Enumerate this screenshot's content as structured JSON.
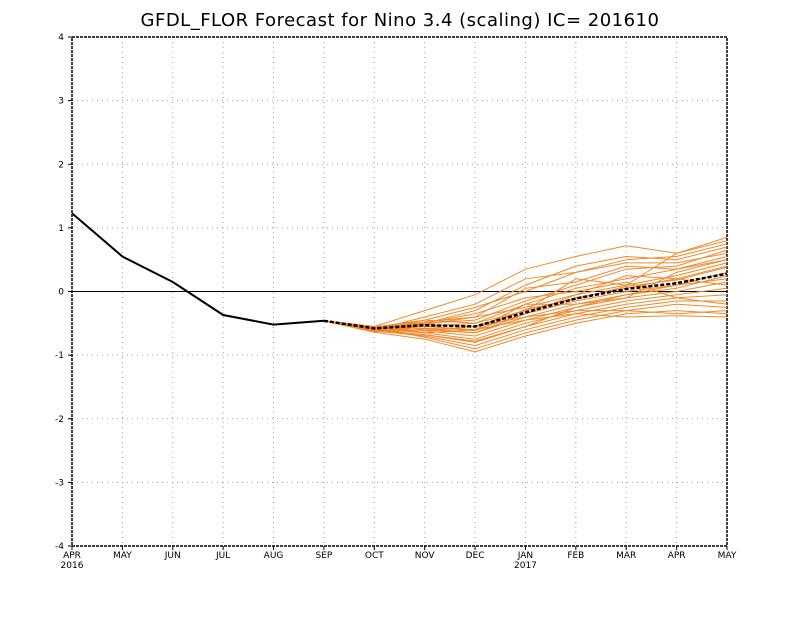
{
  "chart_data": {
    "type": "line",
    "title": "GFDL_FLOR Forecast for Nino 3.4 (scaling) IC= 201610",
    "xlabel": "",
    "ylabel": "",
    "x_ticks": [
      "APR",
      "MAY",
      "JUN",
      "JUL",
      "AUG",
      "SEP",
      "OCT",
      "NOV",
      "DEC",
      "JAN",
      "FEB",
      "MAR",
      "APR",
      "MAY"
    ],
    "x_year_labels": [
      {
        "index": 0,
        "label": "2016"
      },
      {
        "index": 9,
        "label": "2017"
      }
    ],
    "y_ticks": [
      -4,
      -3,
      -2,
      -1,
      0,
      1,
      2,
      3,
      4
    ],
    "ylim": [
      -4,
      4
    ],
    "grid": true,
    "zero_line": true,
    "colors": {
      "observed": "#000000",
      "members": "#f08a2c",
      "ensemble_mean": "#000000",
      "grid": "#a0a0a0"
    },
    "series": [
      {
        "role": "observed",
        "x": [
          0,
          1,
          2,
          3,
          4,
          5
        ],
        "values": [
          1.23,
          0.55,
          0.15,
          -0.37,
          -0.52,
          -0.46
        ]
      },
      {
        "role": "ensemble_mean",
        "x": [
          5,
          6,
          7,
          8,
          9,
          10,
          11,
          12,
          13
        ],
        "values": [
          -0.46,
          -0.58,
          -0.53,
          -0.55,
          -0.33,
          -0.11,
          0.04,
          0.13,
          0.28
        ]
      }
    ],
    "members": [
      [
        -0.46,
        -0.55,
        -0.3,
        -0.05,
        0.35,
        0.55,
        0.72,
        0.6,
        0.85
      ],
      [
        -0.46,
        -0.6,
        -0.45,
        -0.25,
        0.0,
        0.3,
        0.5,
        0.55,
        0.75
      ],
      [
        -0.46,
        -0.58,
        -0.5,
        -0.45,
        -0.15,
        0.1,
        0.35,
        0.4,
        0.65
      ],
      [
        -0.46,
        -0.62,
        -0.55,
        -0.5,
        -0.2,
        0.05,
        0.2,
        0.35,
        0.55
      ],
      [
        -0.46,
        -0.57,
        -0.48,
        -0.4,
        -0.25,
        -0.05,
        0.1,
        0.25,
        0.45
      ],
      [
        -0.46,
        -0.59,
        -0.52,
        -0.55,
        -0.3,
        -0.1,
        0.05,
        0.2,
        0.4
      ],
      [
        -0.46,
        -0.61,
        -0.58,
        -0.6,
        -0.35,
        -0.15,
        0.0,
        0.1,
        0.3
      ],
      [
        -0.46,
        -0.56,
        -0.6,
        -0.65,
        -0.4,
        -0.2,
        -0.05,
        0.05,
        0.25
      ],
      [
        -0.46,
        -0.63,
        -0.62,
        -0.7,
        -0.45,
        -0.25,
        -0.1,
        0.0,
        0.15
      ],
      [
        -0.46,
        -0.58,
        -0.65,
        -0.75,
        -0.5,
        -0.3,
        -0.15,
        -0.05,
        0.05
      ],
      [
        -0.46,
        -0.6,
        -0.68,
        -0.8,
        -0.55,
        -0.35,
        -0.2,
        -0.1,
        -0.05
      ],
      [
        -0.46,
        -0.62,
        -0.7,
        -0.85,
        -0.6,
        -0.4,
        -0.25,
        -0.15,
        -0.15
      ],
      [
        -0.46,
        -0.57,
        -0.72,
        -0.9,
        -0.65,
        -0.45,
        -0.3,
        -0.2,
        -0.25
      ],
      [
        -0.46,
        -0.64,
        -0.75,
        -0.95,
        -0.7,
        -0.5,
        -0.35,
        -0.3,
        -0.35
      ],
      [
        -0.46,
        -0.55,
        -0.5,
        -0.3,
        0.1,
        0.4,
        0.55,
        0.5,
        0.7
      ],
      [
        -0.46,
        -0.6,
        -0.4,
        -0.2,
        0.2,
        0.3,
        0.45,
        0.45,
        0.6
      ],
      [
        -0.46,
        -0.59,
        -0.55,
        -0.6,
        -0.2,
        -0.2,
        -0.1,
        0.3,
        0.5
      ],
      [
        -0.46,
        -0.61,
        -0.5,
        -0.35,
        -0.1,
        0.0,
        0.15,
        -0.1,
        -0.2
      ],
      [
        -0.46,
        -0.58,
        -0.65,
        -0.6,
        -0.45,
        -0.35,
        -0.4,
        -0.38,
        -0.4
      ],
      [
        -0.46,
        -0.6,
        -0.62,
        -0.55,
        -0.4,
        -0.3,
        -0.3,
        -0.35,
        -0.3
      ],
      [
        -0.46,
        -0.56,
        -0.45,
        -0.5,
        -0.3,
        0.2,
        0.1,
        0.6,
        0.8
      ],
      [
        -0.46,
        -0.63,
        -0.58,
        -0.65,
        -0.35,
        -0.05,
        0.25,
        0.2,
        0.1
      ],
      [
        -0.46,
        -0.57,
        -0.52,
        -0.4,
        0.05,
        0.15,
        0.4,
        0.35,
        0.5
      ],
      [
        -0.46,
        -0.62,
        -0.68,
        -0.78,
        -0.55,
        -0.25,
        -0.05,
        0.1,
        0.2
      ],
      [
        -0.46,
        -0.59,
        -0.54,
        -0.62,
        -0.28,
        -0.12,
        0.08,
        0.18,
        0.38
      ]
    ]
  }
}
